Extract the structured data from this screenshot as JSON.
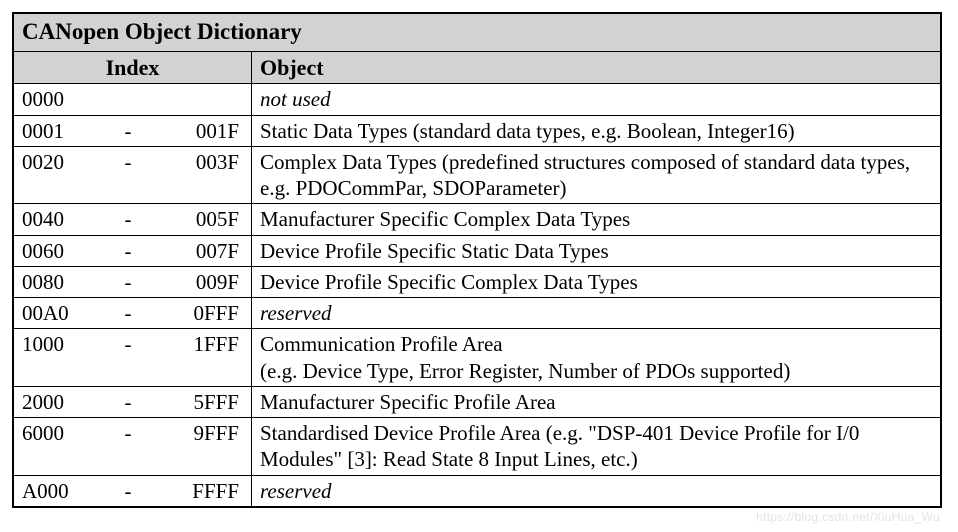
{
  "title": "CANopen Object Dictionary",
  "headers": {
    "index": "Index",
    "object": "Object"
  },
  "rows": [
    {
      "start": "0000",
      "dash": "",
      "end": "",
      "object": "not used",
      "italic": true
    },
    {
      "start": "0001",
      "dash": "-",
      "end": "001F",
      "object": "Static Data Types (standard data types, e.g. Boolean, Integer16)",
      "italic": false
    },
    {
      "start": "0020",
      "dash": "-",
      "end": "003F",
      "object": "Complex Data Types (predefined structures composed of standard data types, e.g. PDOCommPar, SDOParameter)",
      "italic": false
    },
    {
      "start": "0040",
      "dash": "-",
      "end": "005F",
      "object": "Manufacturer Specific Complex Data Types",
      "italic": false
    },
    {
      "start": "0060",
      "dash": "-",
      "end": "007F",
      "object": "Device Profile Specific Static Data Types",
      "italic": false
    },
    {
      "start": "0080",
      "dash": "-",
      "end": "009F",
      "object": "Device Profile Specific Complex Data Types",
      "italic": false
    },
    {
      "start": "00A0",
      "dash": "-",
      "end": "0FFF",
      "object": "reserved",
      "italic": true
    },
    {
      "start": "1000",
      "dash": "-",
      "end": "1FFF",
      "object": "Communication Profile Area\n(e.g. Device Type, Error Register, Number of PDOs supported)",
      "italic": false
    },
    {
      "start": "2000",
      "dash": "-",
      "end": "5FFF",
      "object": "Manufacturer Specific Profile Area",
      "italic": false
    },
    {
      "start": "6000",
      "dash": "-",
      "end": "9FFF",
      "object": "Standardised Device Profile Area (e.g. \"DSP-401 Device Profile for I/0 Modules\" [3]: Read State 8 Input Lines, etc.)",
      "italic": false
    },
    {
      "start": "A000",
      "dash": "-",
      "end": "FFFF",
      "object": "reserved",
      "italic": true
    }
  ],
  "watermark": "https://blog.csdn.net/XiuHua_Wu"
}
